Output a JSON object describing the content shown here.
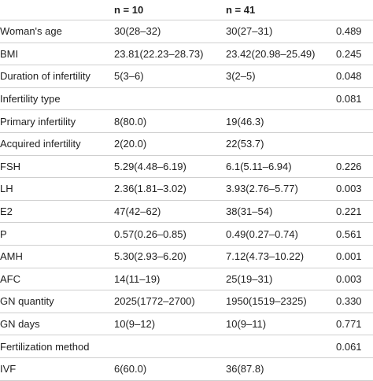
{
  "header": {
    "col1": "n = 10",
    "col2": "n = 41"
  },
  "rows": [
    {
      "label": "Woman's age",
      "g1": "30(28–32)",
      "g2": "30(27–31)",
      "p": "0.489"
    },
    {
      "label": "BMI",
      "g1": "23.81(22.23–28.73)",
      "g2": "23.42(20.98–25.49)",
      "p": "0.245"
    },
    {
      "label": "Duration of infertility",
      "g1": "5(3–6)",
      "g2": "3(2–5)",
      "p": "0.048"
    },
    {
      "label": "Infertility type",
      "g1": "",
      "g2": "",
      "p": "0.081"
    },
    {
      "label": "Primary infertility",
      "g1": "8(80.0)",
      "g2": "19(46.3)",
      "p": ""
    },
    {
      "label": "Acquired infertility",
      "g1": "2(20.0)",
      "g2": "22(53.7)",
      "p": ""
    },
    {
      "label": "FSH",
      "g1": "5.29(4.48–6.19)",
      "g2": "6.1(5.11–6.94)",
      "p": "0.226"
    },
    {
      "label": "LH",
      "g1": "2.36(1.81–3.02)",
      "g2": "3.93(2.76–5.77)",
      "p": "0.003"
    },
    {
      "label": "E2",
      "g1": "47(42–62)",
      "g2": "38(31–54)",
      "p": "0.221"
    },
    {
      "label": "P",
      "g1": "0.57(0.26–0.85)",
      "g2": "0.49(0.27–0.74)",
      "p": "0.561"
    },
    {
      "label": "AMH",
      "g1": "5.30(2.93–6.20)",
      "g2": "7.12(4.73–10.22)",
      "p": "0.001"
    },
    {
      "label": "AFC",
      "g1": "14(11–19)",
      "g2": "25(19–31)",
      "p": "0.003"
    },
    {
      "label": "GN quantity",
      "g1": "2025(1772–2700)",
      "g2": "1950(1519–2325)",
      "p": "0.330"
    },
    {
      "label": "GN days",
      "g1": "10(9–12)",
      "g2": "10(9–11)",
      "p": "0.771"
    },
    {
      "label": "Fertilization method",
      "g1": "",
      "g2": "",
      "p": "0.061"
    },
    {
      "label": "IVF",
      "g1": "6(60.0)",
      "g2": "36(87.8)",
      "p": ""
    }
  ]
}
